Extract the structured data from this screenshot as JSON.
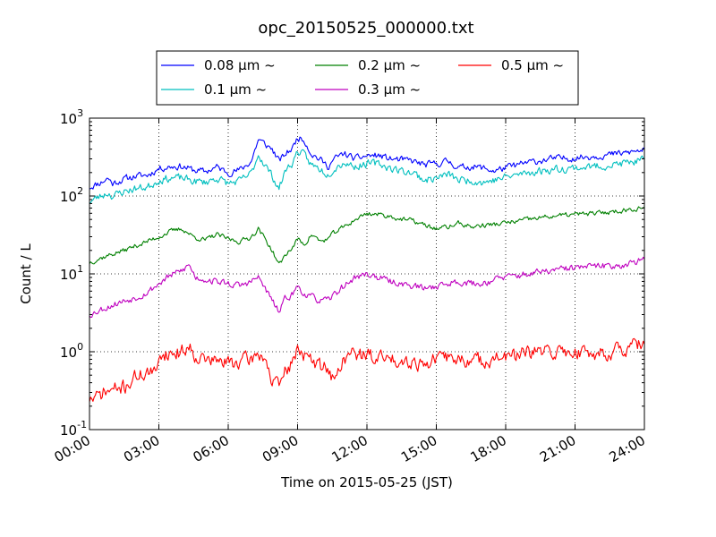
{
  "chart_data": {
    "type": "line",
    "title": "opc_20150525_000000.txt",
    "xlabel": "Time on 2015-05-25 (JST)",
    "ylabel": "Count / L",
    "yscale": "log",
    "ylim": [
      0.1,
      1000
    ],
    "xlim": [
      0,
      24
    ],
    "x_unit": "hours",
    "x_ticks": [
      0,
      3,
      6,
      9,
      12,
      15,
      18,
      21,
      24
    ],
    "x_tick_labels": [
      "00:00",
      "03:00",
      "06:00",
      "09:00",
      "12:00",
      "15:00",
      "18:00",
      "21:00",
      "24:00"
    ],
    "y_tick_labels": [
      {
        "base": "10",
        "exp": "-1",
        "value": 0.1
      },
      {
        "base": "10",
        "exp": "0",
        "value": 1
      },
      {
        "base": "10",
        "exp": "1",
        "value": 10
      },
      {
        "base": "10",
        "exp": "2",
        "value": 100
      },
      {
        "base": "10",
        "exp": "3",
        "value": 1000
      }
    ],
    "grid": true,
    "legend_position": "top-center",
    "series": [
      {
        "name": "0.08 μm ~",
        "color": "#0000ff",
        "noise": 0.07,
        "seed": 11,
        "x": [
          0,
          0.5,
          0.8,
          1.0,
          1.5,
          2.0,
          2.5,
          3.0,
          3.5,
          4.0,
          4.5,
          5.0,
          5.5,
          6.0,
          6.5,
          7.0,
          7.3,
          7.6,
          7.9,
          8.2,
          8.5,
          8.8,
          9.0,
          9.3,
          9.6,
          10.0,
          10.3,
          10.6,
          11.0,
          11.5,
          12.0,
          12.5,
          13.0,
          13.5,
          14.0,
          14.5,
          15.0,
          15.5,
          16.0,
          16.5,
          17.0,
          17.5,
          18.0,
          19.0,
          20.0,
          21.0,
          22.0,
          23.0,
          24.0
        ],
        "y": [
          130,
          150,
          170,
          145,
          165,
          180,
          185,
          225,
          240,
          240,
          215,
          205,
          235,
          200,
          215,
          280,
          530,
          460,
          400,
          280,
          350,
          420,
          570,
          520,
          350,
          290,
          240,
          300,
          350,
          300,
          330,
          330,
          300,
          290,
          280,
          250,
          260,
          280,
          230,
          240,
          230,
          210,
          230,
          270,
          300,
          310,
          330,
          350,
          390
        ]
      },
      {
        "name": "0.1 μm ~",
        "color": "#00bfbf",
        "noise": 0.08,
        "seed": 23,
        "x": [
          0,
          0.5,
          0.8,
          1.0,
          1.5,
          2.0,
          2.5,
          3.0,
          3.5,
          4.0,
          4.5,
          5.0,
          5.5,
          6.0,
          6.5,
          7.0,
          7.3,
          7.6,
          7.9,
          8.2,
          8.5,
          8.8,
          9.0,
          9.3,
          9.6,
          10.0,
          10.3,
          10.6,
          11.0,
          11.5,
          12.0,
          12.5,
          13.0,
          13.5,
          14.0,
          14.5,
          15.0,
          15.5,
          16.0,
          16.5,
          17.0,
          17.5,
          18.0,
          19.0,
          20.0,
          21.0,
          22.0,
          23.0,
          24.0
        ],
        "y": [
          85,
          100,
          110,
          100,
          115,
          125,
          130,
          160,
          170,
          170,
          155,
          150,
          170,
          145,
          155,
          195,
          340,
          250,
          180,
          125,
          220,
          270,
          380,
          330,
          250,
          220,
          190,
          230,
          270,
          240,
          260,
          260,
          230,
          210,
          200,
          160,
          170,
          190,
          160,
          160,
          150,
          160,
          175,
          200,
          220,
          230,
          240,
          260,
          290
        ]
      },
      {
        "name": "0.2 μm ~",
        "color": "#008000",
        "noise": 0.05,
        "seed": 37,
        "x": [
          0,
          0.5,
          1.0,
          1.5,
          2.0,
          2.5,
          3.0,
          3.5,
          4.0,
          4.5,
          5.0,
          5.5,
          6.0,
          6.5,
          7.0,
          7.3,
          7.6,
          7.9,
          8.2,
          8.5,
          8.8,
          9.0,
          9.3,
          9.6,
          10.0,
          10.3,
          10.6,
          11.0,
          11.5,
          12.0,
          12.5,
          13.0,
          13.5,
          14.0,
          14.5,
          15.0,
          15.5,
          16.0,
          16.5,
          17.0,
          17.5,
          18.0,
          19.0,
          20.0,
          21.0,
          22.0,
          23.0,
          24.0
        ],
        "y": [
          14,
          16,
          18,
          20,
          23,
          26,
          30,
          35,
          38,
          30,
          27,
          32,
          28,
          26,
          30,
          38,
          28,
          20,
          13,
          18,
          22,
          28,
          24,
          32,
          26,
          28,
          34,
          40,
          50,
          60,
          58,
          55,
          50,
          48,
          42,
          38,
          40,
          45,
          40,
          42,
          43,
          45,
          50,
          55,
          58,
          60,
          65,
          72
        ]
      },
      {
        "name": "0.3 μm ~",
        "color": "#bf00bf",
        "noise": 0.07,
        "seed": 53,
        "x": [
          0,
          0.5,
          1.0,
          1.5,
          2.0,
          2.5,
          3.0,
          3.5,
          4.0,
          4.3,
          4.6,
          5.0,
          5.5,
          6.0,
          6.5,
          7.0,
          7.3,
          7.6,
          7.9,
          8.2,
          8.5,
          8.8,
          9.0,
          9.3,
          9.6,
          10.0,
          10.3,
          10.6,
          11.0,
          11.5,
          12.0,
          12.5,
          13.0,
          13.5,
          14.0,
          14.5,
          15.0,
          15.5,
          16.0,
          16.5,
          17.0,
          17.5,
          18.0,
          19.0,
          20.0,
          21.0,
          22.0,
          23.0,
          24.0
        ],
        "y": [
          3.0,
          3.5,
          4.0,
          4.5,
          5.0,
          5.8,
          7.5,
          9.5,
          11,
          13,
          9.0,
          8.5,
          8.0,
          7.5,
          7.0,
          8.0,
          9.0,
          6.5,
          4.5,
          3.2,
          5.0,
          5.5,
          7.0,
          5.5,
          5.0,
          4.5,
          4.5,
          5.5,
          7.0,
          9.0,
          10,
          9.0,
          8.0,
          7.5,
          7.0,
          6.5,
          7.0,
          7.5,
          8.0,
          7.5,
          7.5,
          8.5,
          9.0,
          10,
          11,
          12,
          12.5,
          13,
          15
        ]
      },
      {
        "name": "0.5 μm ~",
        "color": "#ff0000",
        "noise": 0.15,
        "seed": 71,
        "x": [
          0,
          0.3,
          0.6,
          1.0,
          1.5,
          2.0,
          2.5,
          2.9,
          3.0,
          3.5,
          4.0,
          4.3,
          4.6,
          5.0,
          5.5,
          6.0,
          6.5,
          7.0,
          7.3,
          7.6,
          7.9,
          8.2,
          8.5,
          8.8,
          9.0,
          9.3,
          9.6,
          10.0,
          10.3,
          10.6,
          11.0,
          11.5,
          12.0,
          12.5,
          13.0,
          13.5,
          14.0,
          14.5,
          15.0,
          15.5,
          16.0,
          16.5,
          17.0,
          17.5,
          18.0,
          19.0,
          20.0,
          21.0,
          22.0,
          23.0,
          24.0
        ],
        "y": [
          0.25,
          0.25,
          0.3,
          0.32,
          0.35,
          0.48,
          0.55,
          0.5,
          0.95,
          0.95,
          1.0,
          1.2,
          0.9,
          0.8,
          0.75,
          0.72,
          0.75,
          0.8,
          0.95,
          0.85,
          0.4,
          0.35,
          0.6,
          0.7,
          1.2,
          0.9,
          0.75,
          0.65,
          0.65,
          0.4,
          0.85,
          0.95,
          0.9,
          0.85,
          0.8,
          0.8,
          0.75,
          0.7,
          0.8,
          0.85,
          0.8,
          0.75,
          0.78,
          0.8,
          0.85,
          0.95,
          1.0,
          1.0,
          0.95,
          1.05,
          1.25
        ]
      }
    ]
  }
}
